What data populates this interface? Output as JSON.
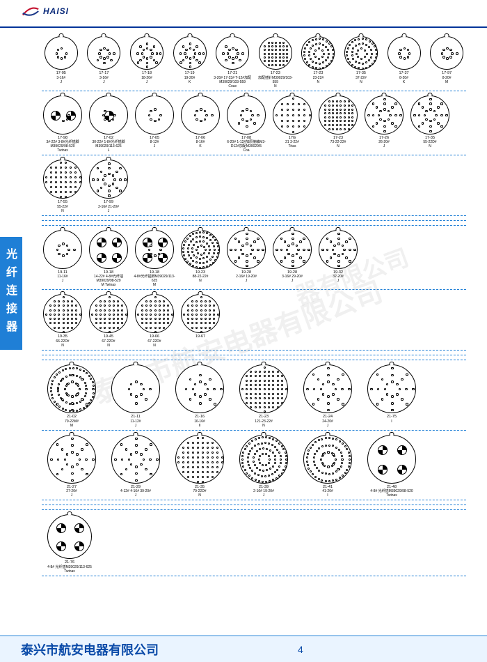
{
  "brand": {
    "logo_text": "HAISI"
  },
  "side_tab": "光纤连接器",
  "footer": {
    "company": "泰兴市航安电器有限公司",
    "page": "4"
  },
  "watermarks": [
    "泰兴市航安电器有限公司",
    "器有限公司"
  ],
  "colors": {
    "header_rule": "#003399",
    "dash_rule": "#1f7fd6",
    "side_tab_bg": "#1f7fd6",
    "footer_bg": "#eaf4ff",
    "footer_text": "#0a4aa8",
    "logo_red": "#c41230",
    "logo_blue": "#1e3a8a"
  },
  "rows": [
    {
      "size": "s",
      "cell": "",
      "items": [
        {
          "pins": 7,
          "t1": "17-05",
          "t2": "3-16#",
          "t3": "J"
        },
        {
          "pins": 12,
          "t1": "17-17",
          "t2": "3-16#",
          "t3": "J"
        },
        {
          "pins": 20,
          "t1": "17-18",
          "t2": "18-20#",
          "t3": "J"
        },
        {
          "pins": 20,
          "t1": "17-19",
          "t2": "19-20#",
          "t3": "K"
        },
        {
          "pins": 14,
          "t1": "17-21",
          "t2": "3-20# 17-23# T-12#加配M39029/103-559",
          "t3": "Coax"
        },
        {
          "fill": 60,
          "t1": "17-23",
          "t2": "加配插针M39029/103-559",
          "t3": "N"
        },
        {
          "rings": 3,
          "t1": "17-23",
          "t2": "23-22#",
          "t3": "N"
        },
        {
          "rings": 3,
          "t1": "17-35",
          "t2": "37-22#",
          "t3": "N"
        },
        {
          "pins": 8,
          "t1": "17-37",
          "t2": "8-20#",
          "t3": "K"
        },
        {
          "pins": 9,
          "t1": "17-97",
          "t2": "8-20#",
          "t3": "M"
        }
      ]
    },
    {
      "size": "m",
      "cell": "",
      "items": [
        {
          "quad": 2,
          "pins": 3,
          "t1": "17-98",
          "t2": "3#-22# 3-8#光纤插脚M39029/98-520",
          "t3": "Twinax"
        },
        {
          "quad": 1,
          "pins": 6,
          "t1": "17-02",
          "t2": "30-22# 1-8#光纤插脚M39029/113-625",
          "t3": "L"
        },
        {
          "pins": 7,
          "t1": "17-05",
          "t2": "8-12#",
          "t3": "J"
        },
        {
          "pins": 9,
          "t1": "17-06",
          "t2": "8-16#",
          "t3": "K"
        },
        {
          "pins": 12,
          "t1": "17-08",
          "t2": "6-20# 1-12#加原接触M3-D12#加配M39029/5",
          "t3": "Coa"
        },
        {
          "fill": 30,
          "t1": "17G",
          "t2": "21 3-22#",
          "t3": "Trias"
        },
        {
          "fill": 70,
          "t1": "17-23",
          "t2": "73-22-22#",
          "t3": "N"
        },
        {
          "pins": 28,
          "t1": "17-26",
          "t2": "26-20#",
          "t3": "J"
        },
        {
          "pins": 40,
          "t1": "17-35",
          "t2": "55-22D#",
          "t3": "N"
        }
      ]
    },
    {
      "size": "m",
      "cell": "",
      "items": [
        {
          "fill": 50,
          "t1": "17-55",
          "t2": "55-22#",
          "t3": "N"
        },
        {
          "pins": 30,
          "t1": "17-99",
          "t2": "2-16# 21-20#",
          "t3": "J"
        }
      ]
    },
    "gap",
    {
      "size": "m",
      "cell": "",
      "items": [
        {
          "pins": 9,
          "t1": "19-11",
          "t2": "11-16#",
          "t3": "J"
        },
        {
          "quad": 4,
          "t1": "19-18",
          "t2": "14-22# 4-8#光纤插 M39029/98-529",
          "t3": "M Twinax"
        },
        {
          "quad": 4,
          "pins": 6,
          "t1": "19-18",
          "t2": "4-8#光纤插脚M39029/113-625",
          "t3": "M"
        },
        {
          "rings": 4,
          "t1": "19-23",
          "t2": "88-22-22#",
          "t3": "N"
        },
        {
          "pins": 30,
          "t1": "19-28",
          "t2": "2-16# 19-20#",
          "t3": "J"
        },
        {
          "pins": 36,
          "t1": "19-28",
          "t2": "3-16# 29-20#",
          "t3": "J"
        },
        {
          "pins": 32,
          "t1": "19-32",
          "t2": "32-20#",
          "t3": "J"
        }
      ]
    },
    {
      "size": "m",
      "cell": "",
      "items": [
        {
          "fill": 55,
          "t1": "19-35",
          "t2": "66-22D#",
          "t3": "N"
        },
        {
          "fill": 60,
          "t1": "19-45",
          "t2": "67-22D#",
          "t3": "N"
        },
        {
          "fill": 60,
          "t1": "19-66",
          "t2": "67-22D#",
          "t3": "N"
        },
        {
          "fill": 60,
          "t1": "19-67",
          "t2": "",
          "t3": ""
        }
      ]
    },
    "gap",
    {
      "size": "l",
      "cell": "big",
      "items": [
        {
          "rings": 3,
          "pins": 20,
          "t1": "21-02",
          "t2": "79-22M#",
          "t3": "M"
        },
        {
          "pins": 11,
          "t1": "21-11",
          "t2": "11-12#",
          "t3": "J"
        },
        {
          "pins": 18,
          "t1": "21-16",
          "t2": "16-16#",
          "t3": "II"
        },
        {
          "fill": 90,
          "t1": "21-23",
          "t2": "121-23-22#",
          "t3": "N"
        },
        {
          "pins": 26,
          "t1": "21-24",
          "t2": "24-20#",
          "t3": "J"
        },
        {
          "pins": 36,
          "t1": "21-75",
          "t2": "",
          "t3": "I"
        }
      ]
    },
    {
      "size": "l",
      "cell": "big",
      "items": [
        {
          "pins": 30,
          "t1": "21-27",
          "t2": "27-20#",
          "t3": "J"
        },
        {
          "pins": 32,
          "t1": "21-29",
          "t2": "4-12# 4-16# 39-20#",
          "t3": "J"
        },
        {
          "fill": 70,
          "t1": "21-35",
          "t2": "79-22D#",
          "t3": "N"
        },
        {
          "rings": 4,
          "t1": "21-39",
          "t2": "2-16# 19-20#",
          "t3": "J"
        },
        {
          "rings": 3,
          "pins": 10,
          "t1": "21-41",
          "t2": "41-20#",
          "t3": "I"
        },
        {
          "quad": 4,
          "t1": "21-48",
          "t2": "4-8# 光纤插M39029/98-520",
          "t3": "Twinax"
        }
      ]
    },
    "gap",
    {
      "size": "xl",
      "cell": "big2",
      "items": [
        {
          "quad": 4,
          "t1": "21-76",
          "t2": "4-8# 光纤插M39029/113-625",
          "t3": "Twinax"
        }
      ]
    }
  ]
}
